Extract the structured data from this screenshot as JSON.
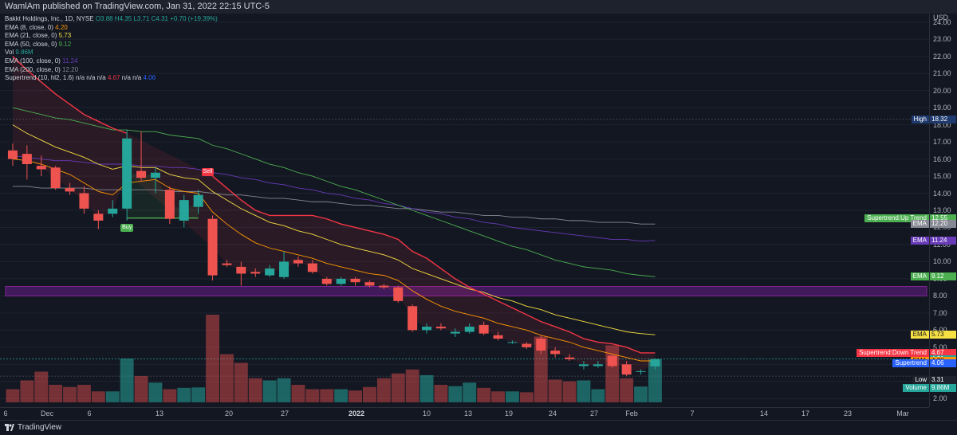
{
  "header": {
    "publisher_line": "WamlAm published on TradingView.com, Jan 31, 2022 22:15 UTC-5"
  },
  "legend": [
    {
      "label": "Bakkt Holdings, Inc., 1D, NYSE ",
      "value": "O3.88 H4.35 L3.71 C4.31 +0.70 (+19.39%)",
      "color": "#26a69a"
    },
    {
      "label": "EMA (8, close, 0) ",
      "value": "4.20",
      "color": "#ff9800"
    },
    {
      "label": "EMA (21, close, 0) ",
      "value": "5.73",
      "color": "#f7e042"
    },
    {
      "label": "EMA (50, close, 0) ",
      "value": "9.12",
      "color": "#4caf50"
    },
    {
      "label": "Vol ",
      "value": "9.86M",
      "color": "#26a69a"
    },
    {
      "label": "EMA (100, close, 0) ",
      "value": "11.24",
      "color": "#673ab7"
    },
    {
      "label": "EMA (200, close, 0) ",
      "value": "12.20",
      "color": "#868993"
    },
    {
      "label": "Supertrend (10, hl2, 1.6) n/a n/a n/a ",
      "value": "4.67",
      "value2": " n/a n/a ",
      "value3": "4.06",
      "color": "#f23645",
      "color3": "#2962ff"
    }
  ],
  "price_axis": {
    "unit": "USD",
    "ticks": [
      "24.00",
      "23.00",
      "22.00",
      "21.00",
      "20.00",
      "19.00",
      "18.00",
      "17.00",
      "16.00",
      "15.00",
      "14.00",
      "13.00",
      "12.00",
      "11.00",
      "10.00",
      "9.00",
      "8.00",
      "7.00",
      "6.00",
      "5.00",
      "4.00",
      "3.00",
      "2.00"
    ]
  },
  "time_axis": {
    "ticks": [
      {
        "label": "6",
        "year": false
      },
      {
        "label": "Dec",
        "year": false
      },
      {
        "label": "6",
        "year": false
      },
      {
        "label": "13",
        "year": false
      },
      {
        "label": "20",
        "year": false
      },
      {
        "label": "27",
        "year": false
      },
      {
        "label": "2022",
        "year": true
      },
      {
        "label": "10",
        "year": false
      },
      {
        "label": "13",
        "year": false
      },
      {
        "label": "19",
        "year": false
      },
      {
        "label": "24",
        "year": false
      },
      {
        "label": "27",
        "year": false
      },
      {
        "label": "Feb",
        "year": false
      },
      {
        "label": "7",
        "year": false
      },
      {
        "label": "14",
        "year": false
      },
      {
        "label": "17",
        "year": false
      },
      {
        "label": "23",
        "year": false
      },
      {
        "label": "Mar",
        "year": false
      }
    ]
  },
  "price_labels": [
    {
      "text": "High",
      "value": "18.32",
      "color": "#1e3a6e"
    },
    {
      "text": "Supertrend:Up Trend",
      "value": "12.55",
      "color": "#4caf50"
    },
    {
      "text": "EMA",
      "value": "12.20",
      "color": "#868993"
    },
    {
      "text": "EMA",
      "value": "11.24",
      "color": "#673ab7"
    },
    {
      "text": "EMA",
      "value": "9.12",
      "color": "#4caf50"
    },
    {
      "text": "EMA",
      "value": "5.73",
      "color": "#f7e042"
    },
    {
      "text": "Supertrend:Down Trend",
      "value": "4.67",
      "color": "#f23645"
    },
    {
      "text": "",
      "value": "4.31",
      "color": "#26a69a"
    },
    {
      "text": "EMA",
      "value": "4.20",
      "color": "#ff9800"
    },
    {
      "text": "Supertrend",
      "value": "4.06",
      "color": "#2962ff"
    },
    {
      "text": "Low",
      "value": "3.31",
      "color": "#1e222d"
    },
    {
      "text": "Volume",
      "value": "9.86M",
      "color": "#26a69a"
    }
  ],
  "markers": {
    "buy": "Buy",
    "sell": "Sell"
  },
  "footer": {
    "brand": "TradingView"
  },
  "colors": {
    "up": "#26a69a",
    "down": "#ef5350",
    "supertrend_down": "#f23645",
    "supertrend_up": "#4caf50",
    "zone": "#7b1fa2"
  },
  "chart_data": {
    "type": "candlestick",
    "candles": [
      {
        "o": 16.5,
        "h": 16.9,
        "l": 15.6,
        "c": 16.0
      },
      {
        "o": 16.3,
        "h": 16.8,
        "l": 14.8,
        "c": 15.7
      },
      {
        "o": 15.6,
        "h": 16.2,
        "l": 15.0,
        "c": 15.4
      },
      {
        "o": 15.5,
        "h": 15.6,
        "l": 14.2,
        "c": 14.3
      },
      {
        "o": 14.3,
        "h": 14.6,
        "l": 13.9,
        "c": 14.1
      },
      {
        "o": 14.0,
        "h": 14.4,
        "l": 12.8,
        "c": 13.1
      },
      {
        "o": 12.8,
        "h": 13.0,
        "l": 11.9,
        "c": 12.4
      },
      {
        "o": 12.8,
        "h": 13.6,
        "l": 12.6,
        "c": 13.1
      },
      {
        "o": 13.1,
        "h": 17.7,
        "l": 12.4,
        "c": 17.2
      },
      {
        "o": 15.3,
        "h": 17.6,
        "l": 14.7,
        "c": 14.9
      },
      {
        "o": 14.9,
        "h": 15.5,
        "l": 14.0,
        "c": 15.2
      },
      {
        "o": 14.2,
        "h": 14.4,
        "l": 12.2,
        "c": 12.5
      },
      {
        "o": 12.4,
        "h": 13.9,
        "l": 12.0,
        "c": 13.6
      },
      {
        "o": 13.2,
        "h": 14.2,
        "l": 12.8,
        "c": 13.9
      },
      {
        "o": 12.5,
        "h": 12.7,
        "l": 8.9,
        "c": 9.2
      },
      {
        "o": 9.9,
        "h": 10.1,
        "l": 9.7,
        "c": 9.8
      },
      {
        "o": 9.7,
        "h": 10.0,
        "l": 8.6,
        "c": 9.3
      },
      {
        "o": 9.4,
        "h": 9.6,
        "l": 9.1,
        "c": 9.3
      },
      {
        "o": 9.2,
        "h": 9.8,
        "l": 9.1,
        "c": 9.6
      },
      {
        "o": 9.1,
        "h": 10.6,
        "l": 9.0,
        "c": 10.0
      },
      {
        "o": 10.1,
        "h": 10.3,
        "l": 9.7,
        "c": 9.9
      },
      {
        "o": 9.9,
        "h": 10.1,
        "l": 9.3,
        "c": 9.4
      },
      {
        "o": 9.0,
        "h": 9.1,
        "l": 8.6,
        "c": 8.7
      },
      {
        "o": 8.7,
        "h": 9.1,
        "l": 8.6,
        "c": 9.0
      },
      {
        "o": 9.0,
        "h": 9.1,
        "l": 8.6,
        "c": 8.8
      },
      {
        "o": 8.8,
        "h": 8.9,
        "l": 8.5,
        "c": 8.6
      },
      {
        "o": 8.6,
        "h": 8.7,
        "l": 8.4,
        "c": 8.5
      },
      {
        "o": 8.5,
        "h": 8.6,
        "l": 7.6,
        "c": 7.7
      },
      {
        "o": 7.4,
        "h": 7.5,
        "l": 5.9,
        "c": 6.0
      },
      {
        "o": 6.0,
        "h": 6.4,
        "l": 5.8,
        "c": 6.2
      },
      {
        "o": 6.2,
        "h": 6.4,
        "l": 6.0,
        "c": 6.1
      },
      {
        "o": 5.8,
        "h": 6.1,
        "l": 5.6,
        "c": 5.9
      },
      {
        "o": 5.9,
        "h": 6.4,
        "l": 5.8,
        "c": 6.2
      },
      {
        "o": 6.3,
        "h": 6.5,
        "l": 5.7,
        "c": 5.8
      },
      {
        "o": 5.7,
        "h": 5.9,
        "l": 5.4,
        "c": 5.5
      },
      {
        "o": 5.3,
        "h": 5.4,
        "l": 5.2,
        "c": 5.3
      },
      {
        "o": 5.2,
        "h": 5.3,
        "l": 4.9,
        "c": 5.0
      },
      {
        "o": 5.5,
        "h": 5.7,
        "l": 4.6,
        "c": 4.8
      },
      {
        "o": 4.8,
        "h": 5.0,
        "l": 4.4,
        "c": 4.6
      },
      {
        "o": 4.4,
        "h": 4.6,
        "l": 4.2,
        "c": 4.3
      },
      {
        "o": 3.9,
        "h": 4.2,
        "l": 3.7,
        "c": 4.0
      },
      {
        "o": 3.9,
        "h": 4.2,
        "l": 3.8,
        "c": 4.0
      },
      {
        "o": 4.5,
        "h": 4.6,
        "l": 3.8,
        "c": 3.9
      },
      {
        "o": 4.0,
        "h": 4.2,
        "l": 3.3,
        "c": 3.4
      },
      {
        "o": 3.6,
        "h": 3.7,
        "l": 3.4,
        "c": 3.6
      },
      {
        "o": 3.88,
        "h": 4.35,
        "l": 3.71,
        "c": 4.31
      }
    ],
    "volume": [
      0.3,
      0.5,
      0.7,
      0.4,
      0.35,
      0.4,
      0.25,
      0.25,
      1.0,
      0.6,
      0.45,
      0.3,
      0.33,
      0.34,
      2.0,
      1.1,
      0.9,
      0.55,
      0.5,
      0.55,
      0.4,
      0.3,
      0.3,
      0.3,
      0.27,
      0.35,
      0.55,
      0.66,
      0.75,
      0.62,
      0.4,
      0.37,
      0.45,
      0.33,
      0.25,
      0.25,
      0.23,
      1.5,
      0.52,
      0.48,
      0.5,
      0.3,
      1.3,
      0.55,
      0.36,
      0.98
    ],
    "ema8": [
      16.0,
      15.9,
      15.7,
      15.4,
      15.1,
      14.6,
      14.1,
      13.9,
      14.6,
      14.7,
      14.8,
      14.3,
      14.1,
      14.0,
      12.9,
      12.2,
      11.6,
      11.1,
      10.8,
      10.6,
      10.4,
      10.2,
      9.9,
      9.7,
      9.5,
      9.3,
      9.2,
      8.9,
      8.3,
      7.8,
      7.4,
      7.1,
      6.9,
      6.7,
      6.4,
      6.2,
      6.0,
      5.7,
      5.5,
      5.3,
      5.0,
      4.8,
      4.6,
      4.4,
      4.2,
      4.2
    ],
    "ema21": [
      18.0,
      17.5,
      17.1,
      16.7,
      16.4,
      16.1,
      15.7,
      15.4,
      15.6,
      15.5,
      15.5,
      15.1,
      14.9,
      14.8,
      14.1,
      13.6,
      13.1,
      12.7,
      12.3,
      12.1,
      11.8,
      11.6,
      11.3,
      11.0,
      10.8,
      10.6,
      10.4,
      10.1,
      9.6,
      9.3,
      9.0,
      8.7,
      8.4,
      8.2,
      7.9,
      7.7,
      7.4,
      7.2,
      6.9,
      6.7,
      6.5,
      6.3,
      6.1,
      5.9,
      5.8,
      5.73
    ],
    "ema50": [
      19.0,
      18.8,
      18.6,
      18.4,
      18.3,
      18.1,
      17.9,
      17.7,
      17.7,
      17.6,
      17.6,
      17.4,
      17.3,
      17.2,
      16.8,
      16.6,
      16.3,
      16.0,
      15.7,
      15.5,
      15.2,
      15.0,
      14.7,
      14.4,
      14.2,
      13.9,
      13.6,
      13.3,
      13.0,
      12.7,
      12.4,
      12.1,
      11.8,
      11.5,
      11.2,
      10.9,
      10.7,
      10.4,
      10.1,
      9.9,
      9.7,
      9.6,
      9.5,
      9.3,
      9.2,
      9.12
    ],
    "ema100": [
      16.2,
      16.1,
      16.0,
      15.9,
      15.9,
      15.8,
      15.7,
      15.7,
      15.7,
      15.6,
      15.6,
      15.5,
      15.5,
      15.4,
      15.2,
      15.1,
      14.9,
      14.8,
      14.6,
      14.5,
      14.3,
      14.2,
      14.0,
      13.9,
      13.7,
      13.6,
      13.4,
      13.3,
      13.1,
      12.9,
      12.8,
      12.6,
      12.5,
      12.3,
      12.2,
      12.0,
      11.9,
      11.8,
      11.7,
      11.6,
      11.5,
      11.4,
      11.3,
      11.3,
      11.2,
      11.24
    ],
    "ema200": [
      14.4,
      14.4,
      14.3,
      14.3,
      14.3,
      14.3,
      14.2,
      14.2,
      14.2,
      14.2,
      14.2,
      14.1,
      14.1,
      14.1,
      14.0,
      13.9,
      13.9,
      13.8,
      13.7,
      13.7,
      13.6,
      13.5,
      13.5,
      13.4,
      13.3,
      13.3,
      13.2,
      13.1,
      13.1,
      13.0,
      12.9,
      12.9,
      12.8,
      12.7,
      12.7,
      12.6,
      12.6,
      12.5,
      12.5,
      12.4,
      12.4,
      12.3,
      12.3,
      12.3,
      12.2,
      12.2
    ],
    "supertrend_down": [
      22.0,
      21.2,
      20.5,
      19.8,
      19.2,
      18.6,
      18.2,
      17.8,
      17.5,
      null,
      null,
      null,
      null,
      null,
      15.0,
      14.3,
      13.6,
      13.0,
      12.7,
      12.7,
      12.7,
      12.7,
      12.5,
      12.2,
      12.0,
      11.8,
      11.6,
      11.3,
      10.6,
      10.2,
      9.6,
      9.0,
      8.5,
      8.1,
      7.7,
      7.3,
      6.9,
      6.5,
      6.2,
      5.9,
      5.5,
      5.3,
      5.2,
      5.0,
      4.67,
      4.67
    ],
    "supertrend_up": [
      null,
      null,
      null,
      null,
      null,
      null,
      null,
      null,
      12.55,
      12.55,
      12.55,
      12.55,
      12.55,
      12.55,
      null,
      null,
      null,
      null,
      null,
      null,
      null,
      null,
      null,
      null,
      null,
      null,
      null,
      null,
      null,
      null,
      null,
      null,
      null,
      null,
      null,
      null,
      null,
      null,
      null,
      null,
      null,
      null,
      null,
      null,
      null,
      null
    ],
    "y_range": [
      1.5,
      24.5
    ]
  }
}
